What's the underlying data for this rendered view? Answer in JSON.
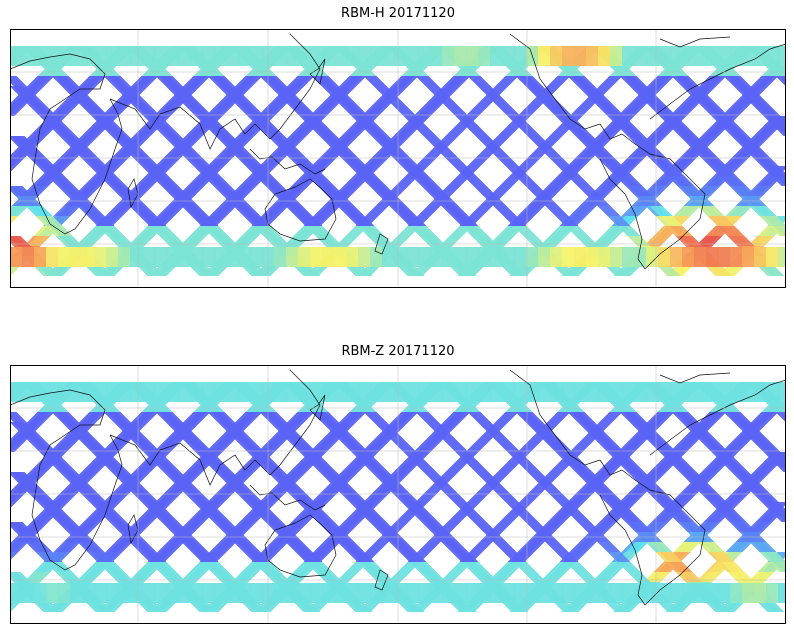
{
  "panels": [
    {
      "title": "RBM-H 20171120",
      "colormap": "jet",
      "colors": {
        "low": "#5a63f5",
        "mid": "#5ce0f0",
        "high": "#e8524c",
        "mid_high": "#f6f36a",
        "mid_orange": "#f7a35a"
      }
    },
    {
      "title": "RBM-Z 20171120",
      "colormap": "jet",
      "colors": {
        "low": "#5a63f5",
        "mid": "#5ce0f0",
        "high": "#e8524c",
        "mid_high": "#f6f36a",
        "mid_orange": "#f7a35a"
      }
    }
  ],
  "map": {
    "projection": "equirectangular",
    "central_longitude": 90,
    "coastlines": true,
    "gridlines": true
  }
}
